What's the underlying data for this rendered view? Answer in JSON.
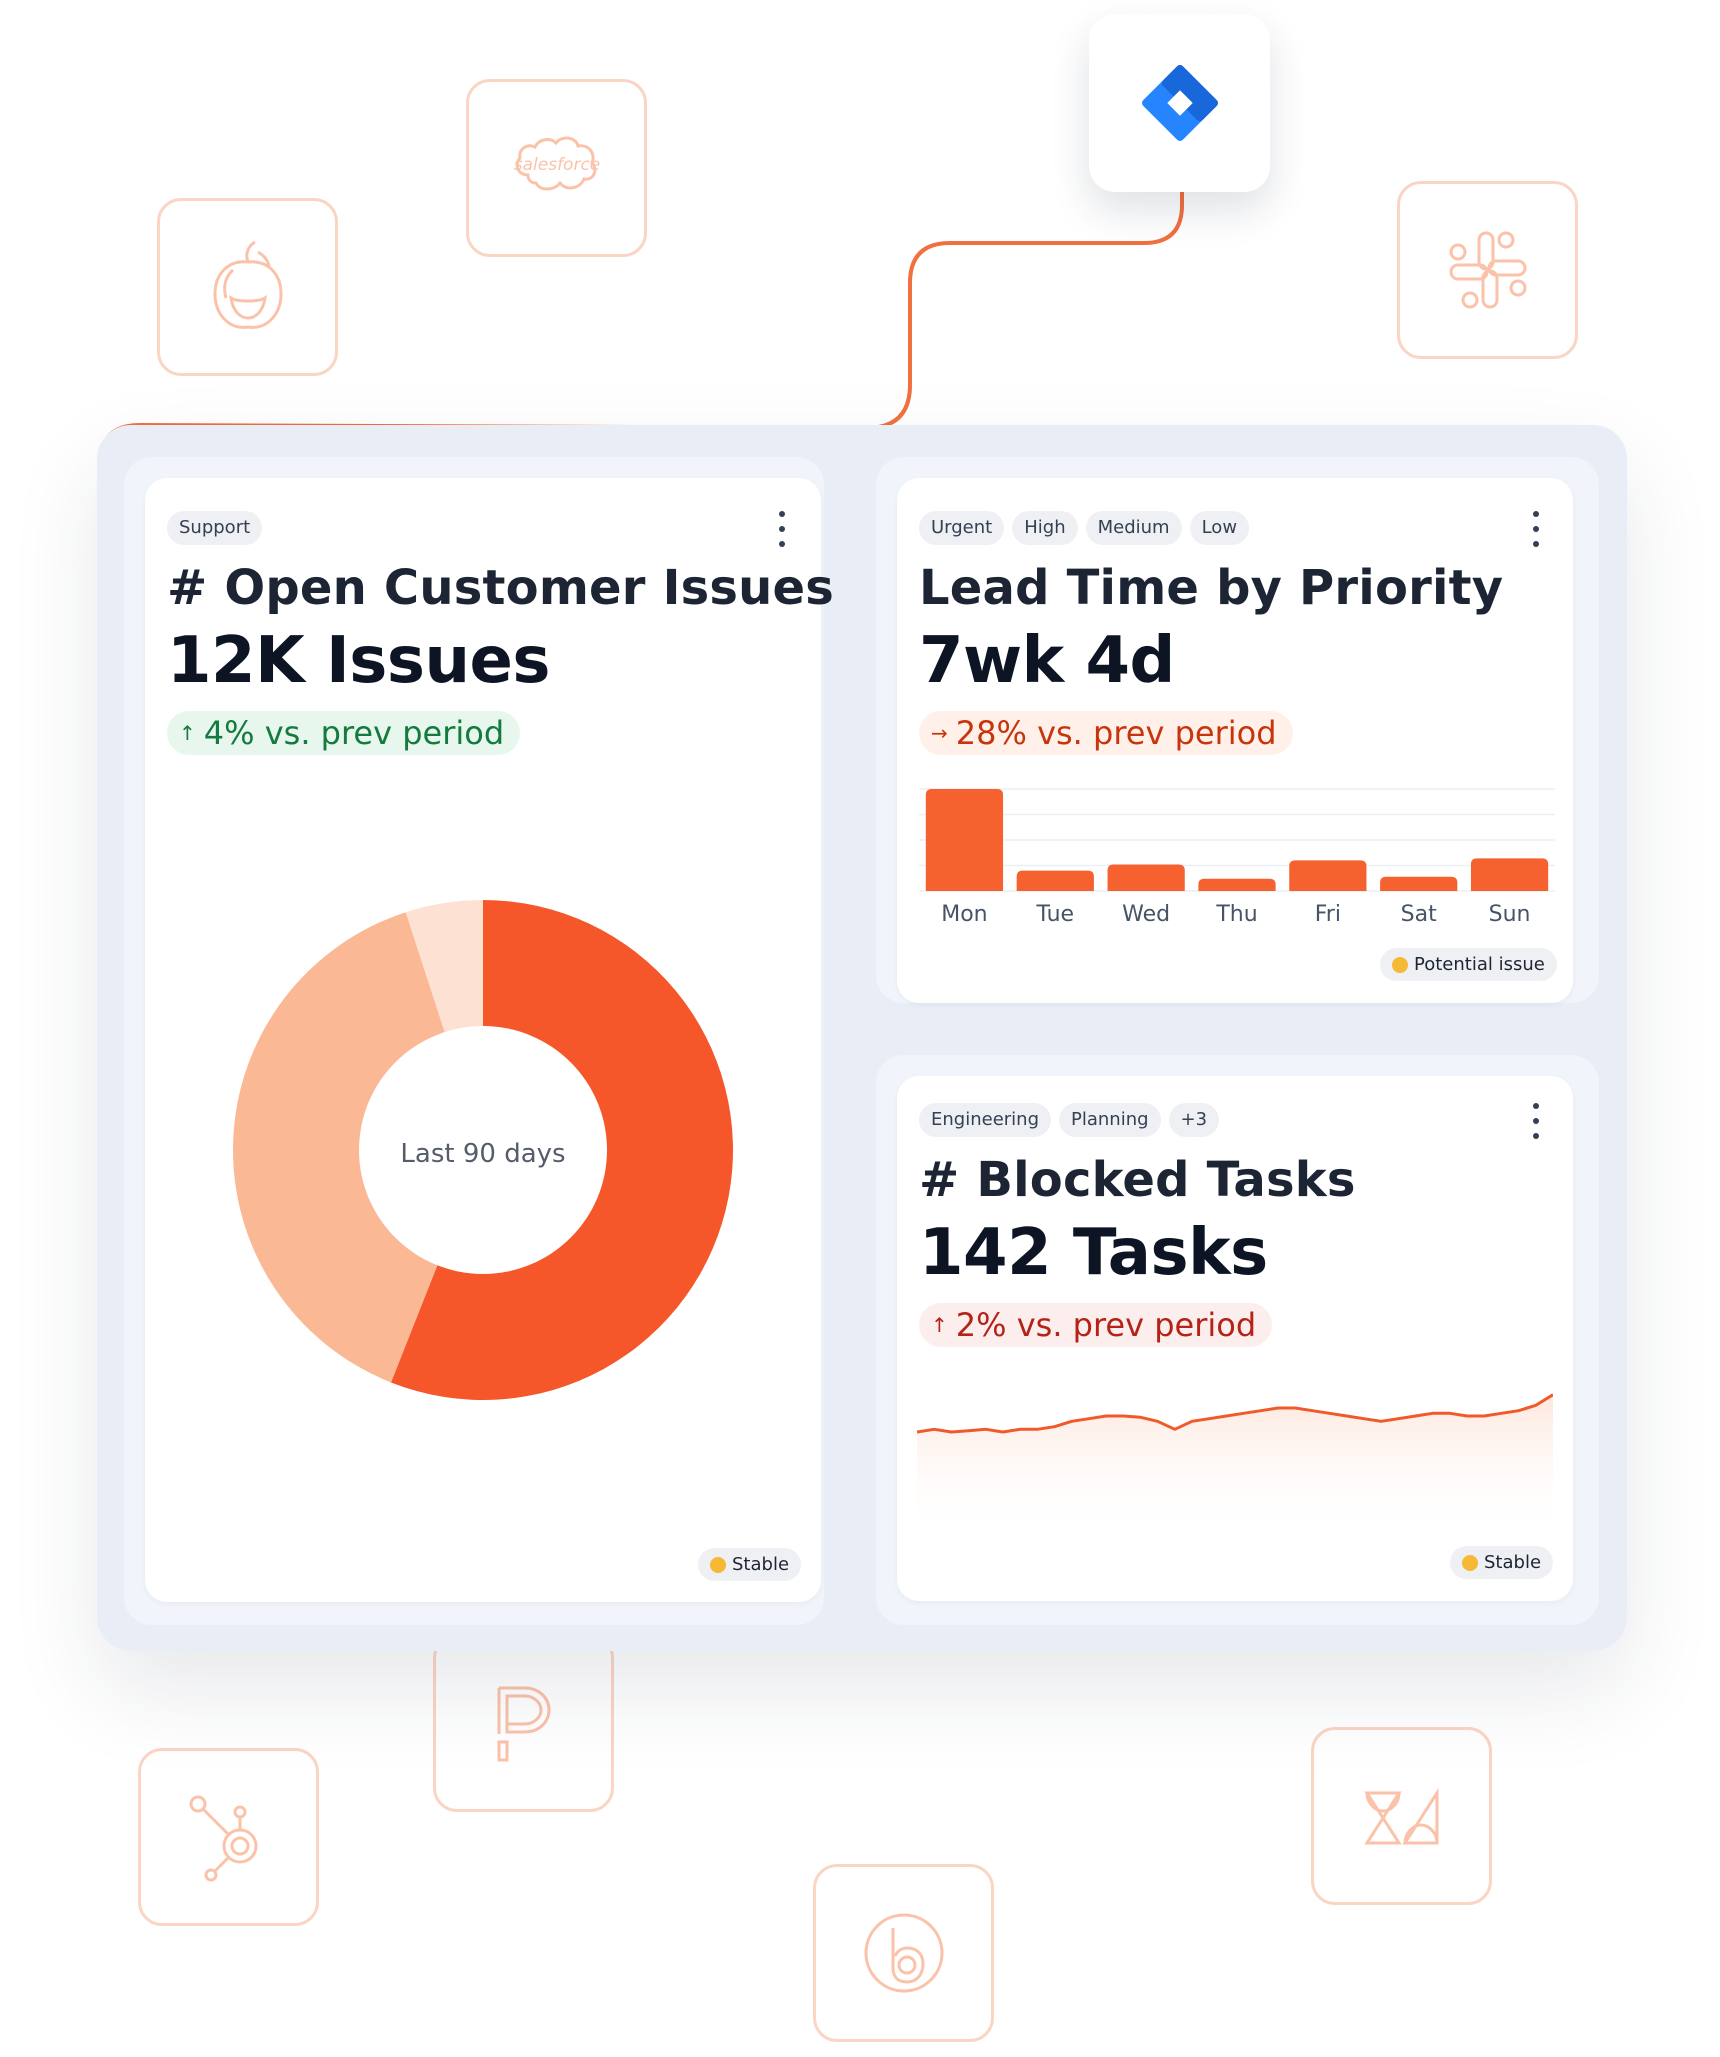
{
  "integrations": {
    "icons": [
      "apple-icon",
      "salesforce-icon",
      "jira-icon",
      "slack-icon",
      "productboard-icon",
      "hubspot-icon",
      "bitbucket-icon",
      "zendesk-icon"
    ],
    "salesforce_label": "salesforce"
  },
  "colors": {
    "accent": "#f5572a",
    "accent_light": "#fbb895",
    "accent_pale": "#fde1d3",
    "tile_border": "#fbd5c4",
    "jira_blue": "#2684ff",
    "green": "#147a3d",
    "red": "#b42318"
  },
  "cards": {
    "issues": {
      "tags": [
        "Support"
      ],
      "title": "# Open Customer Issues",
      "value": "12K Issues",
      "delta": "4% vs. prev period",
      "delta_direction": "up",
      "center_label": "Last 90 days",
      "status": "Stable",
      "chart_data": {
        "type": "pie",
        "slices": [
          {
            "value": 56,
            "color": "#f5572a"
          },
          {
            "value": 39,
            "color": "#fbb895"
          },
          {
            "value": 5,
            "color": "#fde1d3"
          }
        ],
        "donut": true
      }
    },
    "lead_time": {
      "tags": [
        "Urgent",
        "High",
        "Medium",
        "Low"
      ],
      "title": "Lead Time by Priority",
      "value": "7wk 4d",
      "delta": "28% vs. prev period",
      "delta_direction": "right",
      "status": "Potential issue",
      "chart_data": {
        "type": "bar",
        "categories": [
          "Mon",
          "Tue",
          "Wed",
          "Thu",
          "Fri",
          "Sat",
          "Sun"
        ],
        "values": [
          10,
          2,
          2.6,
          1.2,
          3,
          1.4,
          3.2
        ],
        "ylim": [
          0,
          10
        ],
        "grid": true
      }
    },
    "blocked": {
      "tags": [
        "Engineering",
        "Planning",
        "+3"
      ],
      "title": "# Blocked Tasks",
      "value": "142 Tasks",
      "delta": "2% vs. prev period",
      "delta_direction": "up",
      "status": "Stable",
      "chart_data": {
        "type": "area",
        "values": [
          39,
          40,
          39,
          39.5,
          40,
          39,
          40,
          40,
          41,
          43,
          44,
          45,
          45,
          44.5,
          43,
          40,
          43,
          44,
          45,
          46,
          47,
          48,
          48,
          47,
          46,
          45,
          44,
          43,
          44,
          45,
          46,
          46,
          45,
          45,
          46,
          47,
          49,
          53
        ],
        "ylim": [
          0,
          60
        ]
      }
    }
  }
}
